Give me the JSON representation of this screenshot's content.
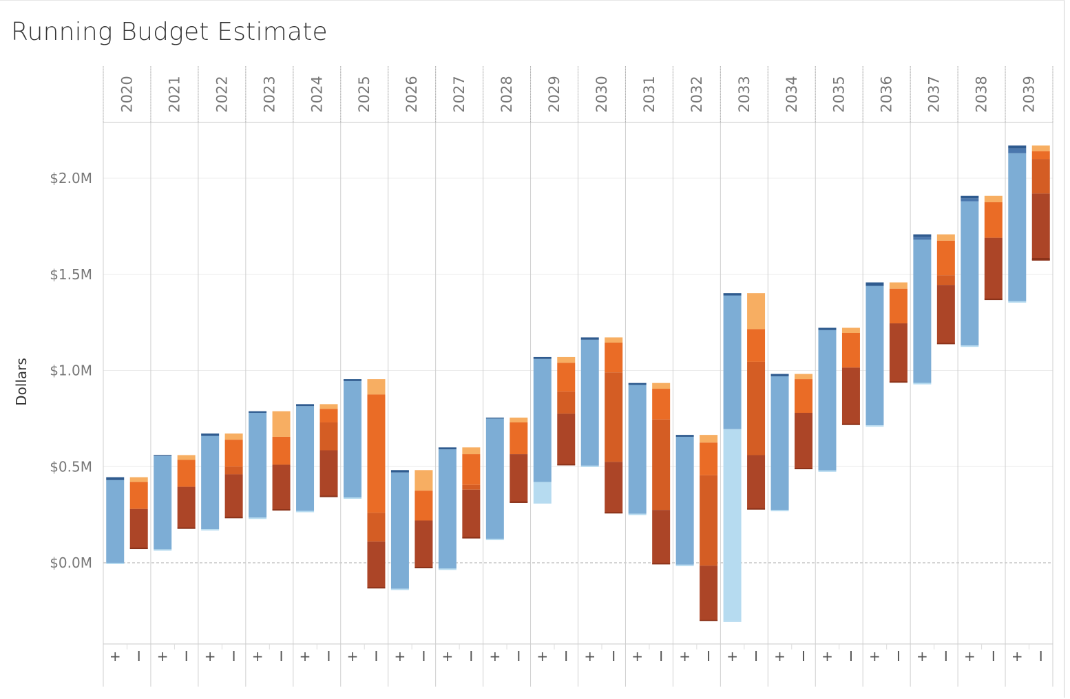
{
  "title": "Running Budget Estimate",
  "chart_data": {
    "type": "waterfall",
    "title": "Running Budget Estimate",
    "ylabel": "Dollars",
    "xlabel": "",
    "ylim": [
      -0.42,
      2.2
    ],
    "y_ticks": [
      0.0,
      0.5,
      1.0,
      1.5,
      2.0
    ],
    "y_tick_labels": [
      "$0.0M",
      "$0.5M",
      "$1.0M",
      "$1.5M",
      "$2.0M"
    ],
    "units": "millions of dollars",
    "sign_labels": [
      "+",
      "I"
    ],
    "grid": true,
    "legend": "none",
    "colors": {
      "dark_blue": "#2f5b8f",
      "mid_blue": "#4a77ad",
      "blue": "#7dadd5",
      "light_blue": "#b6dbf0",
      "light_orange": "#f7ae62",
      "orange": "#ea6c26",
      "dark_orange": "#d45d24",
      "red_brown": "#ac4527",
      "dark_red": "#8a3219"
    },
    "years": [
      {
        "year": "2020",
        "plus": [
          {
            "from": 0.0,
            "to": 0.43,
            "color": "blue"
          },
          {
            "from": 0.43,
            "to": 0.445,
            "color": "dark_blue"
          }
        ],
        "minus": [
          {
            "from": 0.445,
            "to": 0.42,
            "color": "light_orange"
          },
          {
            "from": 0.42,
            "to": 0.28,
            "color": "orange"
          },
          {
            "from": 0.28,
            "to": 0.075,
            "color": "red_brown"
          }
        ]
      },
      {
        "year": "2021",
        "plus": [
          {
            "from": 0.07,
            "to": 0.555,
            "color": "blue"
          },
          {
            "from": 0.555,
            "to": 0.56,
            "color": "dark_blue"
          }
        ],
        "minus": [
          {
            "from": 0.56,
            "to": 0.535,
            "color": "light_orange"
          },
          {
            "from": 0.535,
            "to": 0.395,
            "color": "orange"
          },
          {
            "from": 0.395,
            "to": 0.18,
            "color": "red_brown"
          }
        ]
      },
      {
        "year": "2022",
        "plus": [
          {
            "from": 0.175,
            "to": 0.66,
            "color": "blue"
          },
          {
            "from": 0.66,
            "to": 0.672,
            "color": "dark_blue"
          }
        ],
        "minus": [
          {
            "from": 0.672,
            "to": 0.64,
            "color": "light_orange"
          },
          {
            "from": 0.64,
            "to": 0.5,
            "color": "orange"
          },
          {
            "from": 0.5,
            "to": 0.46,
            "color": "dark_orange"
          },
          {
            "from": 0.46,
            "to": 0.235,
            "color": "red_brown"
          }
        ]
      },
      {
        "year": "2023",
        "plus": [
          {
            "from": 0.235,
            "to": 0.78,
            "color": "blue"
          },
          {
            "from": 0.78,
            "to": 0.788,
            "color": "dark_blue"
          }
        ],
        "minus": [
          {
            "from": 0.788,
            "to": 0.655,
            "color": "light_orange"
          },
          {
            "from": 0.655,
            "to": 0.51,
            "color": "orange"
          },
          {
            "from": 0.51,
            "to": 0.275,
            "color": "red_brown"
          }
        ]
      },
      {
        "year": "2024",
        "plus": [
          {
            "from": 0.27,
            "to": 0.815,
            "color": "blue"
          },
          {
            "from": 0.815,
            "to": 0.825,
            "color": "dark_blue"
          }
        ],
        "minus": [
          {
            "from": 0.825,
            "to": 0.8,
            "color": "light_orange"
          },
          {
            "from": 0.8,
            "to": 0.73,
            "color": "orange"
          },
          {
            "from": 0.73,
            "to": 0.585,
            "color": "dark_orange"
          },
          {
            "from": 0.585,
            "to": 0.345,
            "color": "red_brown"
          }
        ]
      },
      {
        "year": "2025",
        "plus": [
          {
            "from": 0.34,
            "to": 0.945,
            "color": "blue"
          },
          {
            "from": 0.945,
            "to": 0.955,
            "color": "dark_blue"
          }
        ],
        "minus": [
          {
            "from": 0.955,
            "to": 0.875,
            "color": "light_orange"
          },
          {
            "from": 0.875,
            "to": 0.26,
            "color": "orange"
          },
          {
            "from": 0.26,
            "to": 0.11,
            "color": "dark_orange"
          },
          {
            "from": 0.11,
            "to": -0.13,
            "color": "red_brown"
          }
        ]
      },
      {
        "year": "2026",
        "plus": [
          {
            "from": -0.135,
            "to": 0.47,
            "color": "blue"
          },
          {
            "from": 0.47,
            "to": 0.482,
            "color": "dark_blue"
          }
        ],
        "minus": [
          {
            "from": 0.482,
            "to": 0.375,
            "color": "light_orange"
          },
          {
            "from": 0.375,
            "to": 0.22,
            "color": "orange"
          },
          {
            "from": 0.22,
            "to": -0.025,
            "color": "red_brown"
          }
        ]
      },
      {
        "year": "2027",
        "plus": [
          {
            "from": -0.03,
            "to": 0.59,
            "color": "blue"
          },
          {
            "from": 0.59,
            "to": 0.6,
            "color": "dark_blue"
          }
        ],
        "minus": [
          {
            "from": 0.6,
            "to": 0.565,
            "color": "light_orange"
          },
          {
            "from": 0.565,
            "to": 0.405,
            "color": "orange"
          },
          {
            "from": 0.405,
            "to": 0.38,
            "color": "dark_orange"
          },
          {
            "from": 0.38,
            "to": 0.13,
            "color": "red_brown"
          }
        ]
      },
      {
        "year": "2028",
        "plus": [
          {
            "from": 0.125,
            "to": 0.75,
            "color": "blue"
          },
          {
            "from": 0.75,
            "to": 0.755,
            "color": "dark_blue"
          }
        ],
        "minus": [
          {
            "from": 0.755,
            "to": 0.73,
            "color": "light_orange"
          },
          {
            "from": 0.73,
            "to": 0.565,
            "color": "orange"
          },
          {
            "from": 0.565,
            "to": 0.315,
            "color": "red_brown"
          }
        ]
      },
      {
        "year": "2029",
        "plus": [
          {
            "from": 0.315,
            "to": 0.42,
            "color": "light_blue"
          },
          {
            "from": 0.42,
            "to": 1.06,
            "color": "blue"
          },
          {
            "from": 1.06,
            "to": 1.07,
            "color": "dark_blue"
          }
        ],
        "minus": [
          {
            "from": 1.07,
            "to": 1.04,
            "color": "light_orange"
          },
          {
            "from": 1.04,
            "to": 0.89,
            "color": "orange"
          },
          {
            "from": 0.89,
            "to": 0.775,
            "color": "dark_orange"
          },
          {
            "from": 0.775,
            "to": 0.51,
            "color": "red_brown"
          }
        ]
      },
      {
        "year": "2030",
        "plus": [
          {
            "from": 0.505,
            "to": 1.16,
            "color": "blue"
          },
          {
            "from": 1.16,
            "to": 1.172,
            "color": "dark_blue"
          }
        ],
        "minus": [
          {
            "from": 1.172,
            "to": 1.145,
            "color": "light_orange"
          },
          {
            "from": 1.145,
            "to": 0.99,
            "color": "orange"
          },
          {
            "from": 0.99,
            "to": 0.525,
            "color": "dark_orange"
          },
          {
            "from": 0.525,
            "to": 0.26,
            "color": "red_brown"
          }
        ]
      },
      {
        "year": "2031",
        "plus": [
          {
            "from": 0.255,
            "to": 0.925,
            "color": "blue"
          },
          {
            "from": 0.925,
            "to": 0.935,
            "color": "dark_blue"
          }
        ],
        "minus": [
          {
            "from": 0.935,
            "to": 0.905,
            "color": "light_orange"
          },
          {
            "from": 0.905,
            "to": 0.745,
            "color": "orange"
          },
          {
            "from": 0.745,
            "to": 0.275,
            "color": "dark_orange"
          },
          {
            "from": 0.275,
            "to": -0.005,
            "color": "red_brown"
          }
        ]
      },
      {
        "year": "2032",
        "plus": [
          {
            "from": -0.01,
            "to": 0.655,
            "color": "blue"
          },
          {
            "from": 0.655,
            "to": 0.665,
            "color": "dark_blue"
          }
        ],
        "minus": [
          {
            "from": 0.665,
            "to": 0.625,
            "color": "light_orange"
          },
          {
            "from": 0.625,
            "to": 0.455,
            "color": "orange"
          },
          {
            "from": 0.455,
            "to": -0.015,
            "color": "dark_orange"
          },
          {
            "from": -0.015,
            "to": -0.3,
            "color": "red_brown"
          }
        ]
      },
      {
        "year": "2033",
        "plus": [
          {
            "from": -0.3,
            "to": 0.695,
            "color": "light_blue"
          },
          {
            "from": 0.695,
            "to": 1.39,
            "color": "blue"
          },
          {
            "from": 1.39,
            "to": 1.402,
            "color": "dark_blue"
          }
        ],
        "minus": [
          {
            "from": 1.402,
            "to": 1.215,
            "color": "light_orange"
          },
          {
            "from": 1.215,
            "to": 1.045,
            "color": "orange"
          },
          {
            "from": 1.045,
            "to": 0.56,
            "color": "dark_orange"
          },
          {
            "from": 0.56,
            "to": 0.28,
            "color": "red_brown"
          }
        ]
      },
      {
        "year": "2034",
        "plus": [
          {
            "from": 0.275,
            "to": 0.97,
            "color": "blue"
          },
          {
            "from": 0.97,
            "to": 0.982,
            "color": "dark_blue"
          }
        ],
        "minus": [
          {
            "from": 0.982,
            "to": 0.955,
            "color": "light_orange"
          },
          {
            "from": 0.955,
            "to": 0.78,
            "color": "orange"
          },
          {
            "from": 0.78,
            "to": 0.49,
            "color": "red_brown"
          }
        ]
      },
      {
        "year": "2035",
        "plus": [
          {
            "from": 0.48,
            "to": 1.21,
            "color": "blue"
          },
          {
            "from": 1.21,
            "to": 1.222,
            "color": "dark_blue"
          }
        ],
        "minus": [
          {
            "from": 1.222,
            "to": 1.195,
            "color": "light_orange"
          },
          {
            "from": 1.195,
            "to": 1.015,
            "color": "orange"
          },
          {
            "from": 1.015,
            "to": 0.72,
            "color": "red_brown"
          }
        ]
      },
      {
        "year": "2036",
        "plus": [
          {
            "from": 0.715,
            "to": 1.44,
            "color": "blue"
          },
          {
            "from": 1.44,
            "to": 1.458,
            "color": "dark_blue"
          }
        ],
        "minus": [
          {
            "from": 1.458,
            "to": 1.425,
            "color": "light_orange"
          },
          {
            "from": 1.425,
            "to": 1.245,
            "color": "orange"
          },
          {
            "from": 1.245,
            "to": 0.94,
            "color": "red_brown"
          }
        ]
      },
      {
        "year": "2037",
        "plus": [
          {
            "from": 0.935,
            "to": 1.68,
            "color": "blue"
          },
          {
            "from": 1.68,
            "to": 1.695,
            "color": "mid_blue"
          },
          {
            "from": 1.695,
            "to": 1.708,
            "color": "dark_blue"
          }
        ],
        "minus": [
          {
            "from": 1.708,
            "to": 1.675,
            "color": "light_orange"
          },
          {
            "from": 1.675,
            "to": 1.495,
            "color": "orange"
          },
          {
            "from": 1.495,
            "to": 1.445,
            "color": "dark_orange"
          },
          {
            "from": 1.445,
            "to": 1.14,
            "color": "red_brown"
          }
        ]
      },
      {
        "year": "2038",
        "plus": [
          {
            "from": 1.13,
            "to": 1.88,
            "color": "blue"
          },
          {
            "from": 1.88,
            "to": 1.895,
            "color": "mid_blue"
          },
          {
            "from": 1.895,
            "to": 1.908,
            "color": "dark_blue"
          }
        ],
        "minus": [
          {
            "from": 1.908,
            "to": 1.875,
            "color": "light_orange"
          },
          {
            "from": 1.875,
            "to": 1.69,
            "color": "orange"
          },
          {
            "from": 1.69,
            "to": 1.37,
            "color": "red_brown"
          }
        ]
      },
      {
        "year": "2039",
        "plus": [
          {
            "from": 1.36,
            "to": 2.13,
            "color": "blue"
          },
          {
            "from": 2.13,
            "to": 2.155,
            "color": "mid_blue"
          },
          {
            "from": 2.155,
            "to": 2.17,
            "color": "dark_blue"
          }
        ],
        "minus": [
          {
            "from": 2.17,
            "to": 2.14,
            "color": "light_orange"
          },
          {
            "from": 2.14,
            "to": 2.1,
            "color": "orange"
          },
          {
            "from": 2.1,
            "to": 1.92,
            "color": "dark_orange"
          },
          {
            "from": 1.92,
            "to": 1.585,
            "color": "red_brown"
          },
          {
            "from": 1.585,
            "to": 1.575,
            "color": "dark_red"
          }
        ]
      }
    ]
  }
}
